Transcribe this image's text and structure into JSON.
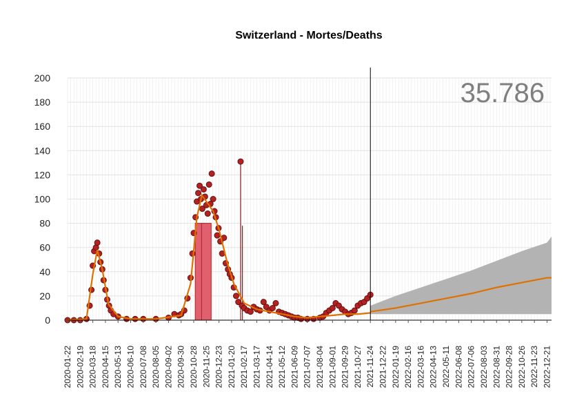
{
  "chart_data": {
    "type": "scatter",
    "title": "Switzerland - Mortes/Deaths",
    "xlabel": "",
    "ylabel": "",
    "ylim": [
      0,
      200
    ],
    "yticks": [
      0,
      20,
      40,
      60,
      80,
      100,
      120,
      140,
      160,
      180,
      200
    ],
    "x_tick_labels": [
      "2020-01-22",
      "2020-02-19",
      "2020-03-18",
      "2020-04-15",
      "2020-05-13",
      "2020-06-10",
      "2020-07-08",
      "2020-08-05",
      "2020-09-02",
      "2020-09-30",
      "2020-10-28",
      "2020-11-25",
      "2020-12-23",
      "2021-01-20",
      "2021-02-17",
      "2021-03-17",
      "2021-04-14",
      "2021-05-12",
      "2021-06-09",
      "2021-07-07",
      "2021-08-04",
      "2021-09-01",
      "2021-09-29",
      "2021-10-27",
      "2021-11-24",
      "2021-12-22",
      "2022-01-19",
      "2022-02-16",
      "2022-03-16",
      "2022-04-13",
      "2022-05-11",
      "2022-06-08",
      "2022-07-06",
      "2022-08-03",
      "2022-08-31",
      "2022-09-28",
      "2022-10-26",
      "2022-11-23",
      "2022-12-21"
    ],
    "annotation": "35.786",
    "forecast_start": "2021-11-24",
    "grid": true,
    "series": [
      {
        "role": "observed",
        "color": "#b22222",
        "points": [
          [
            "2020-01-22",
            0
          ],
          [
            "2020-02-05",
            0
          ],
          [
            "2020-02-19",
            0
          ],
          [
            "2020-03-04",
            1
          ],
          [
            "2020-03-11",
            12
          ],
          [
            "2020-03-15",
            25
          ],
          [
            "2020-03-18",
            45
          ],
          [
            "2020-03-21",
            57
          ],
          [
            "2020-03-25",
            60
          ],
          [
            "2020-03-28",
            64
          ],
          [
            "2020-04-01",
            55
          ],
          [
            "2020-04-04",
            48
          ],
          [
            "2020-04-08",
            42
          ],
          [
            "2020-04-11",
            33
          ],
          [
            "2020-04-15",
            25
          ],
          [
            "2020-04-19",
            17
          ],
          [
            "2020-04-23",
            12
          ],
          [
            "2020-04-27",
            8
          ],
          [
            "2020-05-03",
            5
          ],
          [
            "2020-05-13",
            3
          ],
          [
            "2020-06-01",
            1
          ],
          [
            "2020-06-20",
            1
          ],
          [
            "2020-07-08",
            1
          ],
          [
            "2020-08-05",
            1
          ],
          [
            "2020-09-02",
            2
          ],
          [
            "2020-09-15",
            5
          ],
          [
            "2020-09-25",
            4
          ],
          [
            "2020-09-30",
            5
          ],
          [
            "2020-10-07",
            8
          ],
          [
            "2020-10-14",
            18
          ],
          [
            "2020-10-21",
            35
          ],
          [
            "2020-10-25",
            55
          ],
          [
            "2020-10-28",
            72
          ],
          [
            "2020-11-01",
            85
          ],
          [
            "2020-11-04",
            98
          ],
          [
            "2020-11-07",
            105
          ],
          [
            "2020-11-10",
            111
          ],
          [
            "2020-11-13",
            100
          ],
          [
            "2020-11-16",
            92
          ],
          [
            "2020-11-19",
            108
          ],
          [
            "2020-11-22",
            102
          ],
          [
            "2020-11-25",
            95
          ],
          [
            "2020-11-28",
            88
          ],
          [
            "2020-12-01",
            112
          ],
          [
            "2020-12-04",
            96
          ],
          [
            "2020-12-07",
            121
          ],
          [
            "2020-12-10",
            100
          ],
          [
            "2020-12-13",
            90
          ],
          [
            "2020-12-16",
            85
          ],
          [
            "2020-12-19",
            70
          ],
          [
            "2020-12-22",
            76
          ],
          [
            "2020-12-26",
            65
          ],
          [
            "2020-12-30",
            55
          ],
          [
            "2021-01-03",
            68
          ],
          [
            "2021-01-07",
            47
          ],
          [
            "2021-01-12",
            42
          ],
          [
            "2021-01-16",
            38
          ],
          [
            "2021-01-20",
            35
          ],
          [
            "2021-01-25",
            27
          ],
          [
            "2021-01-30",
            20
          ],
          [
            "2021-02-04",
            15
          ],
          [
            "2021-02-09",
            131
          ],
          [
            "2021-02-12",
            12
          ],
          [
            "2021-02-17",
            10
          ],
          [
            "2021-02-24",
            8
          ],
          [
            "2021-03-03",
            7
          ],
          [
            "2021-03-10",
            11
          ],
          [
            "2021-03-17",
            9
          ],
          [
            "2021-03-24",
            8
          ],
          [
            "2021-04-01",
            15
          ],
          [
            "2021-04-07",
            11
          ],
          [
            "2021-04-14",
            8
          ],
          [
            "2021-04-21",
            10
          ],
          [
            "2021-04-28",
            14
          ],
          [
            "2021-05-05",
            7
          ],
          [
            "2021-05-12",
            6
          ],
          [
            "2021-05-19",
            5
          ],
          [
            "2021-05-26",
            4
          ],
          [
            "2021-06-02",
            3
          ],
          [
            "2021-06-09",
            2
          ],
          [
            "2021-06-16",
            2
          ],
          [
            "2021-06-23",
            1
          ],
          [
            "2021-07-07",
            1
          ],
          [
            "2021-07-21",
            1
          ],
          [
            "2021-08-04",
            2
          ],
          [
            "2021-08-11",
            3
          ],
          [
            "2021-08-18",
            6
          ],
          [
            "2021-08-25",
            8
          ],
          [
            "2021-09-01",
            10
          ],
          [
            "2021-09-08",
            14
          ],
          [
            "2021-09-15",
            12
          ],
          [
            "2021-09-22",
            9
          ],
          [
            "2021-09-29",
            7
          ],
          [
            "2021-10-06",
            5
          ],
          [
            "2021-10-13",
            6
          ],
          [
            "2021-10-20",
            8
          ],
          [
            "2021-10-27",
            12
          ],
          [
            "2021-11-03",
            14
          ],
          [
            "2021-11-10",
            15
          ],
          [
            "2021-11-17",
            18
          ],
          [
            "2021-11-24",
            21
          ]
        ]
      },
      {
        "role": "smoothed",
        "color": "#e07000",
        "points": [
          [
            "2020-01-22",
            0
          ],
          [
            "2020-03-04",
            1
          ],
          [
            "2020-03-18",
            38
          ],
          [
            "2020-03-28",
            58
          ],
          [
            "2020-04-08",
            42
          ],
          [
            "2020-04-22",
            13
          ],
          [
            "2020-05-13",
            3
          ],
          [
            "2020-06-10",
            1
          ],
          [
            "2020-08-05",
            1
          ],
          [
            "2020-09-30",
            4
          ],
          [
            "2020-10-21",
            30
          ],
          [
            "2020-11-04",
            85
          ],
          [
            "2020-11-15",
            103
          ],
          [
            "2020-11-25",
            98
          ],
          [
            "2020-12-10",
            90
          ],
          [
            "2020-12-23",
            75
          ],
          [
            "2021-01-10",
            48
          ],
          [
            "2021-01-25",
            30
          ],
          [
            "2021-02-17",
            14
          ],
          [
            "2021-03-17",
            9
          ],
          [
            "2021-04-14",
            7
          ],
          [
            "2021-05-12",
            5
          ],
          [
            "2021-06-09",
            3
          ],
          [
            "2021-07-07",
            2
          ],
          [
            "2021-08-04",
            3
          ],
          [
            "2021-09-01",
            4
          ],
          [
            "2021-09-29",
            5
          ],
          [
            "2021-10-27",
            5
          ],
          [
            "2021-11-24",
            6
          ]
        ]
      },
      {
        "role": "forecast",
        "color": "#e07000",
        "points": [
          [
            "2021-11-24",
            7
          ],
          [
            "2022-01-19",
            10
          ],
          [
            "2022-03-16",
            14
          ],
          [
            "2022-05-11",
            18
          ],
          [
            "2022-07-06",
            22
          ],
          [
            "2022-08-31",
            27
          ],
          [
            "2022-10-26",
            31
          ],
          [
            "2022-12-21",
            35
          ],
          [
            "2022-12-31",
            35
          ]
        ],
        "band_upper": [
          [
            "2021-11-24",
            12
          ],
          [
            "2022-01-19",
            20
          ],
          [
            "2022-03-16",
            27
          ],
          [
            "2022-05-11",
            34
          ],
          [
            "2022-07-06",
            41
          ],
          [
            "2022-08-31",
            49
          ],
          [
            "2022-10-26",
            57
          ],
          [
            "2022-12-21",
            64
          ],
          [
            "2022-12-31",
            69
          ]
        ],
        "band_lower": [
          [
            "2021-11-24",
            5
          ],
          [
            "2022-12-31",
            5
          ]
        ],
        "band_color": "#b3b3b3"
      }
    ],
    "bars": [
      {
        "x": "2020-11-11",
        "value": 80
      },
      {
        "x": "2020-11-25",
        "value": 80
      }
    ],
    "spikes": [
      {
        "x": "2021-02-09",
        "value": 131
      },
      {
        "x": "2021-02-13",
        "value": 78
      }
    ]
  }
}
